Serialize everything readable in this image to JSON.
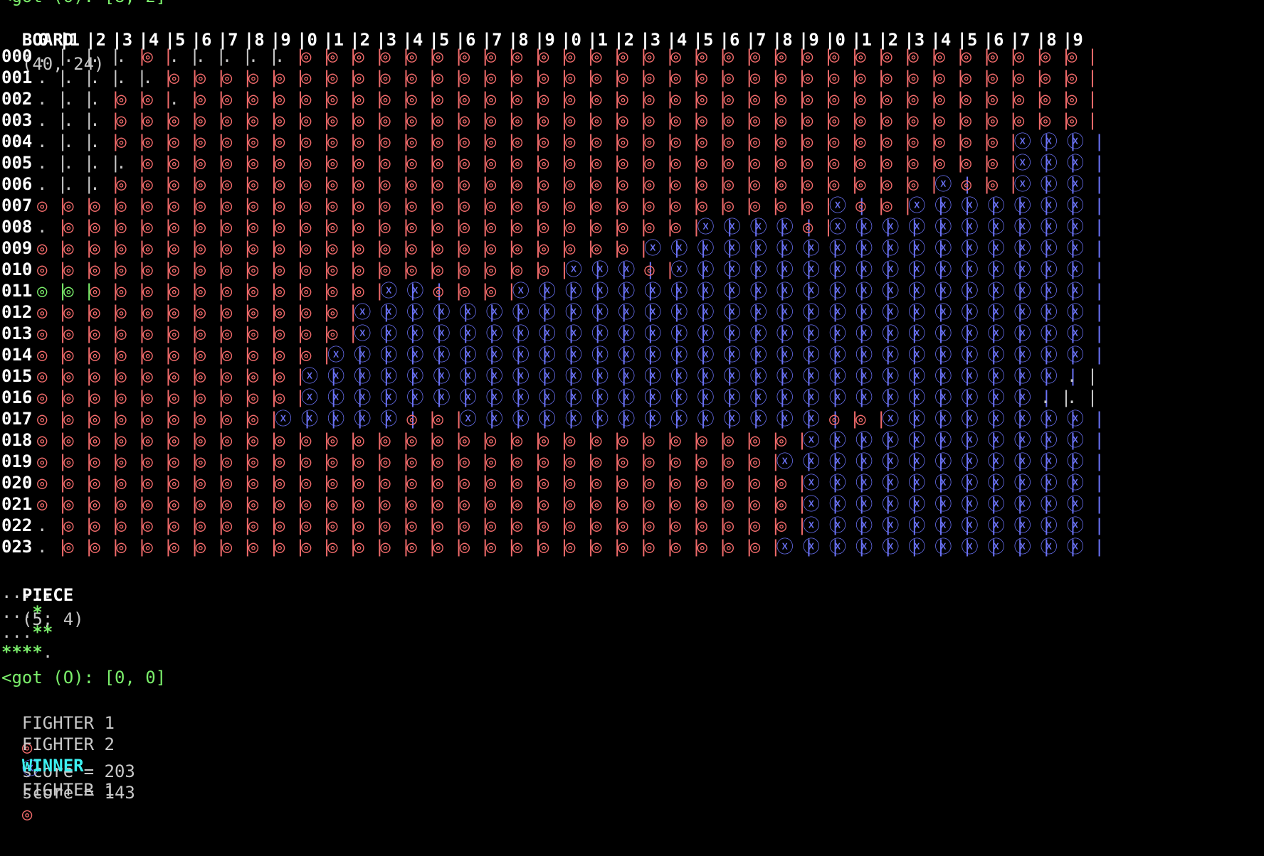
{
  "top_partial": "<got (O): [8, 2]",
  "board": {
    "label": "BOARD",
    "size": "(40, 24)",
    "col_headers": [
      "0",
      "1",
      "2",
      "3",
      "4",
      "5",
      "6",
      "7",
      "8",
      "9",
      "0",
      "1",
      "2",
      "3",
      "4",
      "5",
      "6",
      "7",
      "8",
      "9",
      "0",
      "1",
      "2",
      "3",
      "4",
      "5",
      "6",
      "7",
      "8",
      "9",
      "0",
      "1",
      "2",
      "3",
      "4",
      "5",
      "6",
      "7",
      "8",
      "9"
    ],
    "row_labels": [
      "000",
      "001",
      "002",
      "003",
      "004",
      "005",
      "006",
      "007",
      "008",
      "009",
      "010",
      "011",
      "012",
      "013",
      "014",
      "015",
      "016",
      "017",
      "018",
      "019",
      "020",
      "021",
      "022",
      "023"
    ],
    "rows": [
      "....O.....OOOOOOOOOOOOOOOOOOOOOOOOOOOOOO",
      ".....OOOOOOOOOOOOOOOOOOOOOOOOOOOOOOOOOOO",
      "...OO.OOOOOOOOOOOOOOOOOOOOOOOOOOOOOOOOOO",
      "...OOOOOOOOOOOOOOOOOOOOOOOOOOOOOOOOOOOOO",
      "...OOOOOOOOOOOOOOOOOOOOOOOOOOOOOOOOOOXXX",
      "....OOOOOOOOOOOOOOOOOOOOOOOOOOOOOOOOOXXX",
      "...OOOOOOOOOOOOOOOOOOOOOOOOOOOOOOOXOOXXX",
      "OOOOOOOOOOOOOOOOOOOOOOOOOOOOOOXOOXXXXXXX",
      ".OOOOOOOOOOOOOOOOOOOOOOOOXXXXOXXXXXXXXXX",
      "OOOOOOOOOOOOOOOOOOOOOOOXXXXXXXXXXXXXXXXX",
      "OOOOOOOOOOOOOOOOOOOOXXXOXXXXXXXXXXXXXXXX",
      "GGOOOOOOOOOOOXXOOOXXXXXXXXXXXXXXXXXXXXXX",
      "OOOOOOOOOOOOXXXXXXXXXXXXXXXXXXXXXXXXXXXX",
      "OOOOOOOOOOOOXXXXXXXXXXXXXXXXXXXXXXXXXXXX",
      "OOOOOOOOOOOXXXXXXXXXXXXXXXXXXXXXXXXXXXXX",
      "OOOOOOOOOOXXXXXXXXXXXXXXXXXXXXXXXXXXXXX.",
      "OOOOOOOOOOXXXXXXXXXXXXXXXXXXXXXXXXXXXX..",
      "OOOOOOOOOXXXXXOOXXXXXXXXXXXXXXOOXXXXXXXX",
      "OOOOOOOOOOOOOOOOOOOOOOOOOOOOOXXXXXXXXXXX",
      "OOOOOOOOOOOOOOOOOOOOOOOOOOOOXXXXXXXXXXXX",
      "OOOOOOOOOOOOOOOOOOOOOOOOOOOOOXXXXXXXXXXX",
      "OOOOOOOOOOOOOOOOOOOOOOOOOOOOOXXXXXXXXXXX",
      ".OOOOOOOOOOOOOOOOOOOOOOOOOOOOXXXXXXXXXXX",
      ".OOOOOOOOOOOOOOOOOOOOOOOOOOOXXXXXXXXXXXX"
    ]
  },
  "piece": {
    "label": "PIECE",
    "size": "(5, 4)",
    "rows": [
      ".....",
      "...*.",
      "...**",
      "****."
    ]
  },
  "got_line": "<got (O): [0, 0]",
  "fighters": [
    {
      "label": "FIGHTER 1",
      "symbol": "◎",
      "score_text": "score = 203",
      "color": "#f06a6a"
    },
    {
      "label": "FIGHTER 2",
      "symbol": "ⓧ",
      "score_text": "score = 143",
      "color": "#6a72f6"
    }
  ],
  "winner": {
    "label": "WINNER",
    "text": "FIGHTER 1",
    "symbol": "◎"
  },
  "colors": {
    "fighter1": "#f06a6a",
    "fighter2": "#6a72f6",
    "new_piece": "#7bef6b",
    "winner_label": "#3cf0f0"
  }
}
